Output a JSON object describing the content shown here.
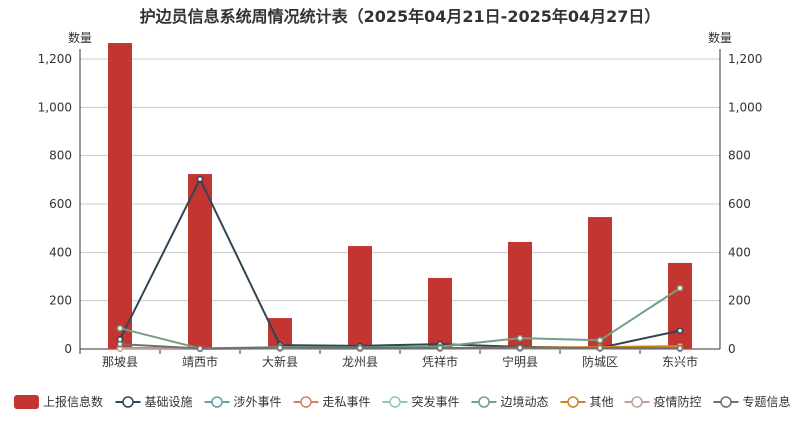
{
  "chart_data": {
    "type": "bar+line",
    "title": "护边员信息系统周情况统计表（2025年04月21日-2025年04月27日）",
    "ylabel_left": "数量",
    "ylabel_right": "数量",
    "ylim": [
      0,
      1300
    ],
    "yticks": [
      "0",
      "200",
      "400",
      "600",
      "800",
      "1,000",
      "1,200"
    ],
    "grid": true,
    "legend_position": "bottom",
    "categories": [
      "那坡县",
      "靖西市",
      "大新县",
      "龙州县",
      "凭祥市",
      "宁明县",
      "防城区",
      "东兴市"
    ],
    "series": [
      {
        "name": "上报信息数",
        "type": "bar",
        "color": "#c23531",
        "values": [
          1266,
          724,
          128,
          426,
          294,
          443,
          546,
          356
        ]
      },
      {
        "name": "基础设施",
        "type": "line",
        "color": "#2f4554",
        "values": [
          40,
          703,
          16,
          13,
          20,
          9,
          5,
          76
        ]
      },
      {
        "name": "涉外事件",
        "type": "line",
        "color": "#61a0a8",
        "values": [
          3,
          1,
          2,
          1,
          2,
          2,
          2,
          1
        ]
      },
      {
        "name": "走私事件",
        "type": "line",
        "color": "#d48265",
        "values": [
          5,
          1,
          3,
          2,
          3,
          4,
          6,
          8
        ]
      },
      {
        "name": "突发事件",
        "type": "line",
        "color": "#91c7ae",
        "values": [
          2,
          1,
          1,
          1,
          1,
          2,
          1,
          1
        ]
      },
      {
        "name": "边境动态",
        "type": "line",
        "color": "#749f83",
        "values": [
          86,
          2,
          8,
          6,
          10,
          45,
          36,
          252
        ]
      },
      {
        "name": "其他",
        "type": "line",
        "color": "#ca8622",
        "values": [
          4,
          2,
          4,
          3,
          4,
          6,
          8,
          12
        ]
      },
      {
        "name": "疫情防控",
        "type": "line",
        "color": "#bda29a",
        "values": [
          1,
          0,
          1,
          0,
          1,
          1,
          1,
          1
        ]
      },
      {
        "name": "专题信息",
        "type": "line",
        "color": "#6e7074",
        "values": [
          20,
          2,
          5,
          4,
          4,
          5,
          4,
          3
        ]
      }
    ]
  }
}
